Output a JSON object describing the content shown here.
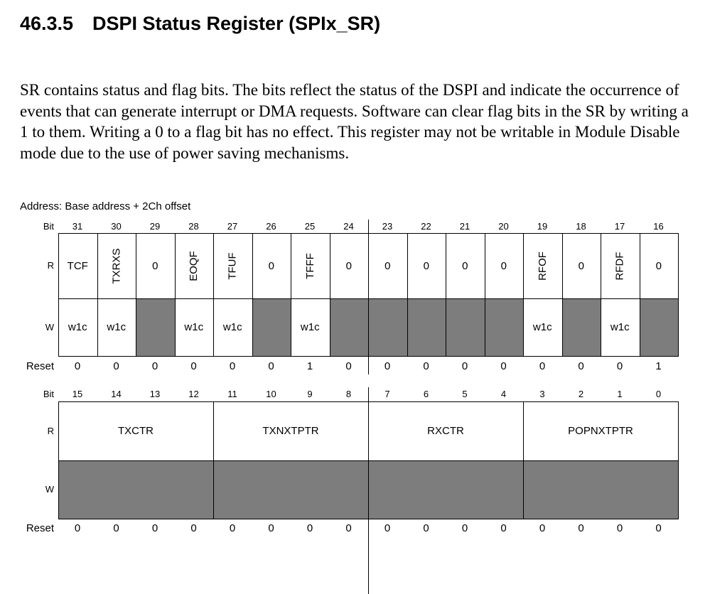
{
  "section": {
    "number": "46.3.5",
    "title": "DSPI Status Register (SPIx_SR)"
  },
  "paragraph": "SR contains status and flag bits. The bits reflect the status of the DSPI and indicate the occurrence of events that can generate interrupt or DMA requests. Software can clear flag bits in the SR by writing a 1 to them. Writing a 0 to a flag bit has no effect. This register may not be writable in Module Disable mode due to the use of power saving mechanisms.",
  "address": "Address: Base address + 2Ch offset",
  "row_labels": {
    "bit": "Bit",
    "read": "R",
    "write": "W",
    "reset": "Reset"
  },
  "upper": {
    "bits": [
      "31",
      "30",
      "29",
      "28",
      "27",
      "26",
      "25",
      "24",
      "23",
      "22",
      "21",
      "20",
      "19",
      "18",
      "17",
      "16"
    ],
    "read": [
      {
        "text": "TCF",
        "vertical": false
      },
      {
        "text": "TXRXS",
        "vertical": true
      },
      {
        "text": "0",
        "vertical": false
      },
      {
        "text": "EOQF",
        "vertical": true
      },
      {
        "text": "TFUF",
        "vertical": true
      },
      {
        "text": "0",
        "vertical": false
      },
      {
        "text": "TFFF",
        "vertical": true
      },
      {
        "text": "0",
        "vertical": false
      },
      {
        "text": "0",
        "vertical": false
      },
      {
        "text": "0",
        "vertical": false
      },
      {
        "text": "0",
        "vertical": false
      },
      {
        "text": "0",
        "vertical": false
      },
      {
        "text": "RFOF",
        "vertical": true
      },
      {
        "text": "0",
        "vertical": false
      },
      {
        "text": "RFDF",
        "vertical": true
      },
      {
        "text": "0",
        "vertical": false
      }
    ],
    "write": [
      "w1c",
      "w1c",
      "",
      "w1c",
      "w1c",
      "",
      "w1c",
      "",
      "",
      "",
      "",
      "",
      "w1c",
      "",
      "w1c",
      ""
    ],
    "reset": [
      "0",
      "0",
      "0",
      "0",
      "0",
      "0",
      "1",
      "0",
      "0",
      "0",
      "0",
      "0",
      "0",
      "0",
      "0",
      "1"
    ]
  },
  "lower": {
    "bits": [
      "15",
      "14",
      "13",
      "12",
      "11",
      "10",
      "9",
      "8",
      "7",
      "6",
      "5",
      "4",
      "3",
      "2",
      "1",
      "0"
    ],
    "fields": [
      {
        "name": "TXCTR",
        "span": 4
      },
      {
        "name": "TXNXTPTR",
        "span": 4
      },
      {
        "name": "RXCTR",
        "span": 4
      },
      {
        "name": "POPNXTPTR",
        "span": 4
      }
    ],
    "reset": [
      "0",
      "0",
      "0",
      "0",
      "0",
      "0",
      "0",
      "0",
      "0",
      "0",
      "0",
      "0",
      "0",
      "0",
      "0",
      "0"
    ]
  }
}
